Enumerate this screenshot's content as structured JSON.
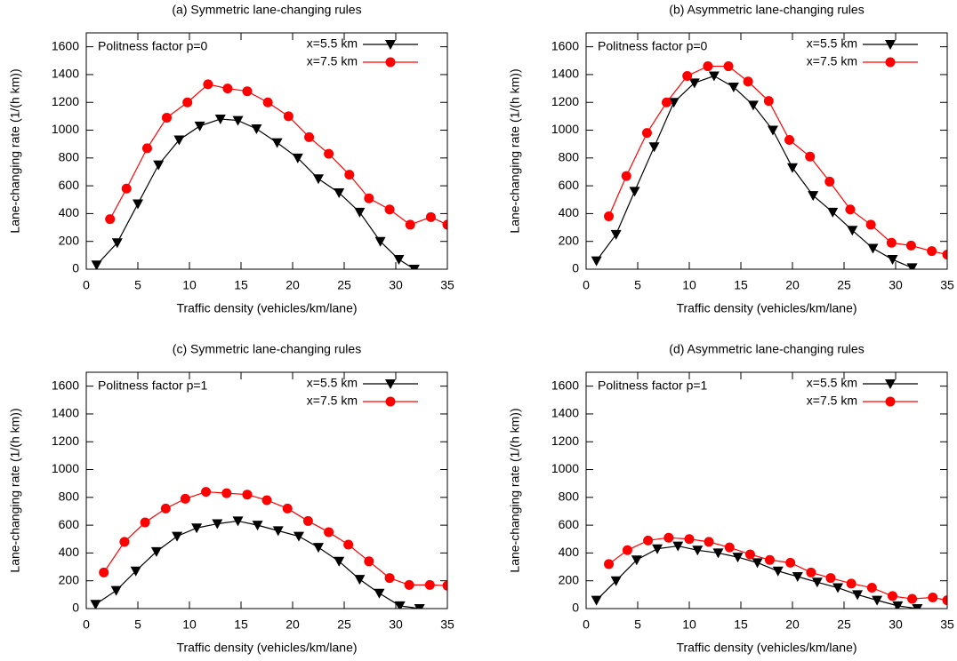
{
  "chart_data": [
    {
      "type": "line",
      "title": "(a) Symmetric lane-changing rules",
      "annotation": "Politness factor p=0",
      "xlabel": "Traffic density (vehicles/km/lane)",
      "ylabel": "Lane-changing rate (1/(h km))",
      "xlim": [
        0,
        35
      ],
      "ylim": [
        0,
        1700
      ],
      "xticks": [
        0,
        5,
        10,
        15,
        20,
        25,
        30,
        35
      ],
      "yticks": [
        0,
        200,
        400,
        600,
        800,
        1000,
        1200,
        1400,
        1600
      ],
      "legend": "upper right",
      "series": [
        {
          "name": "x=5.5 km",
          "color": "#000000",
          "marker": "triangle-down",
          "x": [
            1,
            3,
            5,
            7,
            9,
            11,
            13,
            14.7,
            16.5,
            18.5,
            20.5,
            22.5,
            24.5,
            26.5,
            28.5,
            30.3,
            31.8
          ],
          "values": [
            30,
            190,
            470,
            750,
            930,
            1030,
            1080,
            1070,
            1010,
            910,
            800,
            650,
            550,
            410,
            200,
            70,
            0
          ]
        },
        {
          "name": "x=7.5 km",
          "color": "#ff0000",
          "marker": "circle",
          "x": [
            2.3,
            3.9,
            5.9,
            7.8,
            9.8,
            11.8,
            13.7,
            15.6,
            17.6,
            19.6,
            21.6,
            23.5,
            25.5,
            27.4,
            29.4,
            31.4,
            33.4,
            35
          ],
          "values": [
            360,
            580,
            870,
            1090,
            1200,
            1330,
            1300,
            1280,
            1200,
            1100,
            950,
            830,
            680,
            510,
            430,
            320,
            375,
            320
          ]
        }
      ]
    },
    {
      "type": "line",
      "title": "(b) Asymmetric lane-changing rules",
      "annotation": "Politness factor p=0",
      "xlabel": "Traffic density (vehicles/km/lane)",
      "ylabel": "Lane-changing rate (1/(h km))",
      "xlim": [
        0,
        35
      ],
      "ylim": [
        0,
        1700
      ],
      "xticks": [
        0,
        5,
        10,
        15,
        20,
        25,
        30,
        35
      ],
      "yticks": [
        0,
        200,
        400,
        600,
        800,
        1000,
        1200,
        1400,
        1600
      ],
      "legend": "upper right",
      "series": [
        {
          "name": "x=5.5 km",
          "color": "#000000",
          "marker": "triangle-down",
          "x": [
            1,
            2.9,
            4.7,
            6.6,
            8.5,
            10.5,
            12.4,
            14.3,
            16.2,
            18.1,
            20,
            22,
            23.9,
            25.8,
            27.8,
            29.7,
            31.6
          ],
          "values": [
            60,
            250,
            560,
            880,
            1200,
            1340,
            1390,
            1310,
            1180,
            1000,
            730,
            530,
            410,
            280,
            150,
            70,
            10
          ]
        },
        {
          "name": "x=7.5 km",
          "color": "#ff0000",
          "marker": "circle",
          "x": [
            2.2,
            3.9,
            5.9,
            7.8,
            9.8,
            11.8,
            13.8,
            15.7,
            17.7,
            19.7,
            21.7,
            23.6,
            25.6,
            27.6,
            29.6,
            31.5,
            33.5,
            35
          ],
          "values": [
            380,
            670,
            980,
            1200,
            1390,
            1460,
            1460,
            1350,
            1210,
            930,
            810,
            630,
            430,
            320,
            190,
            170,
            130,
            105
          ]
        }
      ]
    },
    {
      "type": "line",
      "title": "(c) Symmetric lane-changing rules",
      "annotation": "Politness factor p=1",
      "xlabel": "Traffic density (vehicles/km/lane)",
      "ylabel": "Lane-changing rate (1/(h km))",
      "xlim": [
        0,
        35
      ],
      "ylim": [
        0,
        1700
      ],
      "xticks": [
        0,
        5,
        10,
        15,
        20,
        25,
        30,
        35
      ],
      "yticks": [
        0,
        200,
        400,
        600,
        800,
        1000,
        1200,
        1400,
        1600
      ],
      "legend": "upper right",
      "series": [
        {
          "name": "x=5.5 km",
          "color": "#000000",
          "marker": "triangle-down",
          "x": [
            0.9,
            2.9,
            4.8,
            6.8,
            8.8,
            10.7,
            12.7,
            14.7,
            16.6,
            18.6,
            20.6,
            22.5,
            24.5,
            26.5,
            28.4,
            30.4,
            32.3
          ],
          "values": [
            30,
            130,
            270,
            410,
            520,
            580,
            610,
            630,
            600,
            560,
            520,
            440,
            340,
            210,
            110,
            20,
            0
          ]
        },
        {
          "name": "x=7.5 km",
          "color": "#ff0000",
          "marker": "circle",
          "x": [
            1.7,
            3.7,
            5.7,
            7.7,
            9.6,
            11.6,
            13.6,
            15.6,
            17.5,
            19.5,
            21.5,
            23.5,
            25.4,
            27.4,
            29.4,
            31.3,
            33.3,
            35
          ],
          "values": [
            260,
            480,
            620,
            720,
            790,
            840,
            830,
            820,
            780,
            720,
            630,
            550,
            460,
            340,
            220,
            170,
            170,
            165
          ]
        }
      ]
    },
    {
      "type": "line",
      "title": "(d) Asymmetric lane-changing rules",
      "annotation": "Politness factor p=1",
      "xlabel": "Traffic density (vehicles/km/lane)",
      "ylabel": "Lane-changing rate (1/(h km))",
      "xlim": [
        0,
        35
      ],
      "ylim": [
        0,
        1700
      ],
      "xticks": [
        0,
        5,
        10,
        15,
        20,
        25,
        30,
        35
      ],
      "yticks": [
        0,
        200,
        400,
        600,
        800,
        1000,
        1200,
        1400,
        1600
      ],
      "legend": "upper right",
      "series": [
        {
          "name": "x=5.5 km",
          "color": "#000000",
          "marker": "triangle-down",
          "x": [
            1,
            2.9,
            4.9,
            6.9,
            8.9,
            10.8,
            12.8,
            14.7,
            16.6,
            18.6,
            20.5,
            22.4,
            24.4,
            26.3,
            28.2,
            30.2,
            32.1
          ],
          "values": [
            60,
            200,
            350,
            430,
            450,
            420,
            400,
            370,
            330,
            270,
            230,
            190,
            150,
            100,
            60,
            20,
            0
          ]
        },
        {
          "name": "x=7.5 km",
          "color": "#ff0000",
          "marker": "circle",
          "x": [
            2.2,
            4,
            6,
            8,
            10,
            11.9,
            13.9,
            15.9,
            17.8,
            19.8,
            21.8,
            23.7,
            25.7,
            27.7,
            29.7,
            31.6,
            33.6,
            35
          ],
          "values": [
            320,
            420,
            490,
            510,
            500,
            480,
            440,
            390,
            350,
            330,
            260,
            220,
            180,
            150,
            90,
            70,
            80,
            60
          ]
        }
      ]
    }
  ]
}
